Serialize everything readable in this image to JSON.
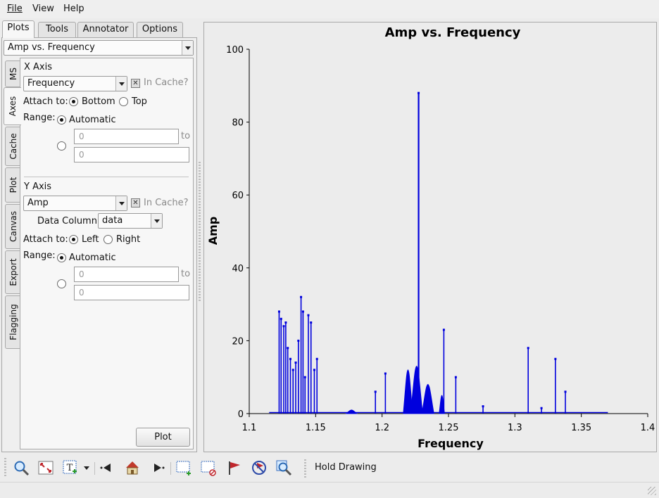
{
  "menubar": {
    "items": [
      "File",
      "View",
      "Help"
    ]
  },
  "tabs": [
    "Plots",
    "Tools",
    "Annotator",
    "Options"
  ],
  "plot_select": "Amp vs. Frequency",
  "side_tabs": [
    "MS",
    "Axes",
    "Cache",
    "Plot",
    "Canvas",
    "Export",
    "Flagging"
  ],
  "x_axis": {
    "title": "X Axis",
    "value": "Frequency",
    "in_cache": "In Cache?",
    "attach_label": "Attach to:",
    "attach_options": [
      "Bottom",
      "Top"
    ],
    "range_label": "Range:",
    "automatic": "Automatic",
    "min": "0",
    "to": "to",
    "max": "0"
  },
  "y_axis": {
    "title": "Y Axis",
    "value": "Amp",
    "in_cache": "In Cache?",
    "data_column_label": "Data Column:",
    "data_column": "data",
    "attach_label": "Attach to:",
    "attach_options": [
      "Left",
      "Right"
    ],
    "range_label": "Range:",
    "automatic": "Automatic",
    "min": "0",
    "to": "to",
    "max": "0"
  },
  "plot_button": "Plot",
  "toolbar": {
    "icons": [
      "zoom-icon",
      "fit-icon",
      "annotate-text-icon",
      "dropdown-arrow-icon",
      "step-back-icon",
      "home-icon",
      "step-forward-icon",
      "select-region-icon",
      "subtract-region-icon",
      "flag-icon",
      "unflag-icon",
      "locate-icon"
    ],
    "hold_drawing": "Hold Drawing"
  },
  "chart_data": {
    "type": "scatter",
    "title": "Amp vs. Frequency",
    "xlabel": "Frequency",
    "ylabel": "Amp",
    "xlim": [
      1.1,
      1.4
    ],
    "ylim": [
      0,
      100
    ],
    "xticks": [
      "1.1",
      "1.15",
      "1.2",
      "1.25",
      "1.3",
      "1.35",
      "1.4"
    ],
    "yticks": [
      "0",
      "20",
      "40",
      "60",
      "80",
      "100"
    ],
    "color": "#0000dd",
    "baseline": {
      "x_range": [
        1.115,
        1.37
      ],
      "amp": 0.3
    },
    "spikes": [
      {
        "x": 1.1225,
        "amp": 28
      },
      {
        "x": 1.124,
        "amp": 26
      },
      {
        "x": 1.126,
        "amp": 24
      },
      {
        "x": 1.1275,
        "amp": 25
      },
      {
        "x": 1.129,
        "amp": 18
      },
      {
        "x": 1.131,
        "amp": 15
      },
      {
        "x": 1.133,
        "amp": 12
      },
      {
        "x": 1.135,
        "amp": 14
      },
      {
        "x": 1.137,
        "amp": 20
      },
      {
        "x": 1.139,
        "amp": 32
      },
      {
        "x": 1.1405,
        "amp": 28
      },
      {
        "x": 1.142,
        "amp": 10
      },
      {
        "x": 1.1445,
        "amp": 27
      },
      {
        "x": 1.1465,
        "amp": 25
      },
      {
        "x": 1.149,
        "amp": 12
      },
      {
        "x": 1.151,
        "amp": 15
      },
      {
        "x": 1.195,
        "amp": 6
      },
      {
        "x": 1.2025,
        "amp": 11
      },
      {
        "x": 1.2275,
        "amp": 88
      },
      {
        "x": 1.2465,
        "amp": 23
      },
      {
        "x": 1.2555,
        "amp": 10
      },
      {
        "x": 1.276,
        "amp": 2
      },
      {
        "x": 1.31,
        "amp": 18
      },
      {
        "x": 1.32,
        "amp": 1.5
      },
      {
        "x": 1.3305,
        "amp": 15
      },
      {
        "x": 1.338,
        "amp": 6
      }
    ],
    "bumps": [
      {
        "x": 1.177,
        "width": 0.004,
        "amp": 1
      },
      {
        "x": 1.2195,
        "width": 0.0035,
        "amp": 12
      },
      {
        "x": 1.226,
        "width": 0.0045,
        "amp": 13
      },
      {
        "x": 1.2345,
        "width": 0.0045,
        "amp": 8
      },
      {
        "x": 1.245,
        "width": 0.002,
        "amp": 5
      }
    ]
  }
}
